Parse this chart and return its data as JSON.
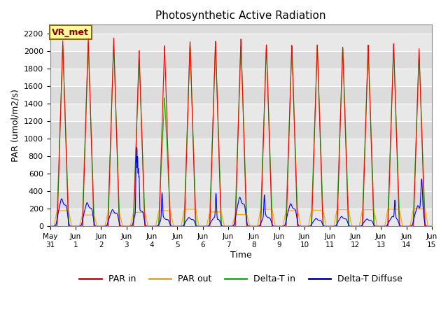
{
  "title": "Photosynthetic Active Radiation",
  "ylabel": "PAR (umol/m2/s)",
  "xlabel": "Time",
  "ylim": [
    0,
    2300
  ],
  "yticks": [
    0,
    200,
    400,
    600,
    800,
    1000,
    1200,
    1400,
    1600,
    1800,
    2000,
    2200
  ],
  "annotation_label": "VR_met",
  "legend": [
    "PAR in",
    "PAR out",
    "Delta-T in",
    "Delta-T Diffuse"
  ],
  "colors": {
    "par_in": "#ff0000",
    "par_out": "#ffa500",
    "delta_t_in": "#00cc00",
    "delta_t_diffuse": "#0000ff"
  },
  "x_tick_labels": [
    "May 31",
    "Jun 1",
    "Jun 2",
    "Jun 3",
    "Jun 4",
    "Jun 5",
    "Jun 6",
    "Jun 7",
    "Jun 8",
    "Jun 9",
    "Jun 10",
    "Jun 11",
    "Jun 12",
    "Jun 13",
    "Jun 14",
    "Jun 15"
  ],
  "num_days": 15,
  "background_color": "#dcdcdc",
  "grid_color": "#ffffff",
  "stripe_color": "#e8e8e8"
}
